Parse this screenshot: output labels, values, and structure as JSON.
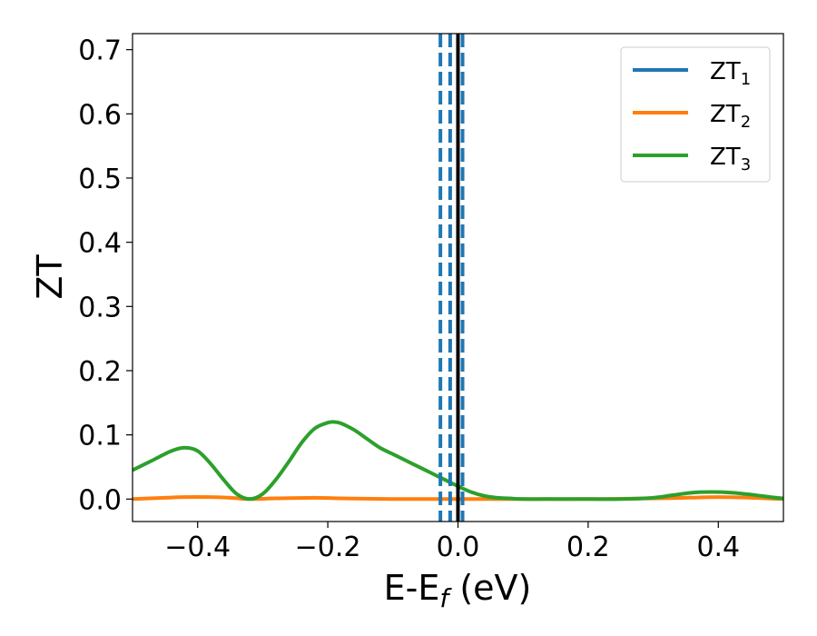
{
  "chart_data": {
    "type": "line",
    "xlabel": "E-E",
    "xlabel_sub": "f",
    "xlabel_unit": " (eV)",
    "ylabel": "ZT",
    "xlim": [
      -0.5,
      0.5
    ],
    "ylim": [
      -0.035,
      0.725
    ],
    "x_ticks": [
      -0.4,
      -0.2,
      0.0,
      0.2,
      0.4
    ],
    "x_tick_labels": [
      "−0.4",
      "−0.2",
      "0.0",
      "0.2",
      "0.4"
    ],
    "y_ticks": [
      0.0,
      0.1,
      0.2,
      0.3,
      0.4,
      0.5,
      0.6,
      0.7
    ],
    "y_tick_labels": [
      "0.0",
      "0.1",
      "0.2",
      "0.3",
      "0.4",
      "0.5",
      "0.6",
      "0.7"
    ],
    "grid": false,
    "legend_position": "top-right",
    "series": [
      {
        "name": "ZT",
        "name_sub": "1",
        "color": "#1f77b4",
        "x": [],
        "y": []
      },
      {
        "name": "ZT",
        "name_sub": "2",
        "color": "#ff7f0e",
        "x": [
          -0.5,
          -0.45,
          -0.42,
          -0.38,
          -0.35,
          -0.32,
          -0.28,
          -0.22,
          -0.18,
          -0.1,
          0.0,
          0.1,
          0.2,
          0.3,
          0.35,
          0.4,
          0.45,
          0.5
        ],
        "y": [
          0.0,
          0.002,
          0.003,
          0.003,
          0.002,
          0.0,
          0.001,
          0.002,
          0.001,
          0.0,
          0.0,
          0.0,
          0.0,
          0.001,
          0.002,
          0.003,
          0.002,
          0.0
        ]
      },
      {
        "name": "ZT",
        "name_sub": "3",
        "color": "#2ca02c",
        "x": [
          -0.5,
          -0.47,
          -0.44,
          -0.42,
          -0.4,
          -0.38,
          -0.36,
          -0.34,
          -0.32,
          -0.3,
          -0.28,
          -0.26,
          -0.24,
          -0.22,
          -0.2,
          -0.19,
          -0.18,
          -0.16,
          -0.14,
          -0.12,
          -0.1,
          -0.08,
          -0.06,
          -0.04,
          -0.02,
          0.0,
          0.02,
          0.04,
          0.06,
          0.08,
          0.1,
          0.15,
          0.2,
          0.25,
          0.3,
          0.33,
          0.36,
          0.39,
          0.42,
          0.45,
          0.48,
          0.5
        ],
        "y": [
          0.045,
          0.06,
          0.075,
          0.08,
          0.075,
          0.055,
          0.03,
          0.008,
          0.0,
          0.008,
          0.03,
          0.058,
          0.088,
          0.11,
          0.119,
          0.12,
          0.118,
          0.108,
          0.094,
          0.08,
          0.07,
          0.06,
          0.05,
          0.04,
          0.03,
          0.02,
          0.011,
          0.005,
          0.002,
          0.001,
          0.0,
          0.0,
          0.0,
          0.0,
          0.002,
          0.006,
          0.01,
          0.011,
          0.01,
          0.007,
          0.003,
          0.001
        ]
      }
    ],
    "vlines": [
      {
        "x": -0.027,
        "style": "dashed",
        "color": "#1f77b4"
      },
      {
        "x": -0.012,
        "style": "dashed",
        "color": "#1f77b4"
      },
      {
        "x": 0.007,
        "style": "dashed",
        "color": "#1f77b4"
      },
      {
        "x": 0.0,
        "style": "solid",
        "color": "#000000"
      }
    ]
  }
}
